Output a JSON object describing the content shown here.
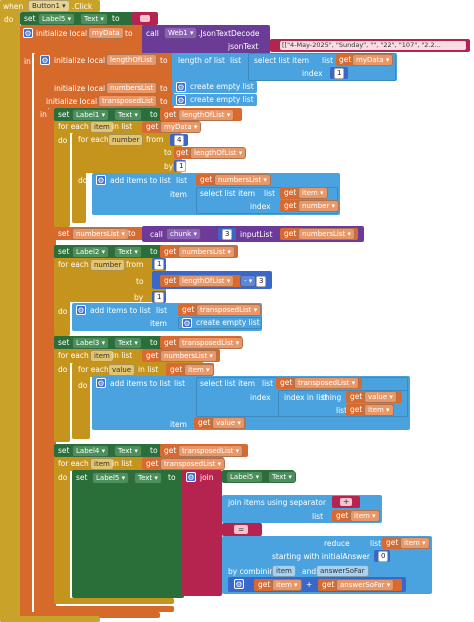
{
  "event": {
    "when": "when",
    "component": "Button1",
    "event": ".Click",
    "do": "do"
  },
  "set1": {
    "set": "set",
    "component": "Label5",
    "prop": "Text",
    "to": "to"
  },
  "init1": {
    "label": "initialize local",
    "name": "myData",
    "to": "to",
    "call": "call",
    "component": "Web1",
    "method": ".JsonTextDecode",
    "param": "jsonText",
    "value": "[[\"4-May-2025\", \"Sunday\", \"\", \"22\", \"107\", \"2.2...",
    "in": "in"
  },
  "init2": {
    "label": "initialize local",
    "name": "lengthOfList",
    "to": "to",
    "block": "length of list",
    "list": "list",
    "select": "select list item",
    "list2": "list",
    "get": "get",
    "var": "myData",
    "index": "index",
    "index_val": "1"
  },
  "init3": {
    "label": "initialize local",
    "name": "numbersList",
    "to": "to",
    "create": "create empty list"
  },
  "init4": {
    "label": "initialize local",
    "name": "transposedList",
    "to": "to",
    "create": "create empty list",
    "in": "in"
  },
  "set2": {
    "set": "set",
    "component": "Label1",
    "prop": "Text",
    "to": "to",
    "get": "get",
    "var": "lengthOfList"
  },
  "loop1": {
    "for_each": "for each",
    "item": "item",
    "in_list": "in list",
    "get": "get",
    "var": "myData",
    "do": "do"
  },
  "loop2": {
    "for_each": "for each",
    "number": "number",
    "from": "from",
    "from_val": "4",
    "to": "to",
    "get": "get",
    "var": "lengthOfList",
    "by": "by",
    "by_val": "1",
    "do": "do"
  },
  "add1": {
    "label": "add items to list",
    "list": "list",
    "get": "get",
    "var": "numbersList",
    "item": "item",
    "select": "select list item",
    "list2": "list",
    "get2": "get",
    "var2": "item",
    "index": "index",
    "get3": "get",
    "var3": "number"
  },
  "set3": {
    "set": "set",
    "var": "numbersList",
    "to": "to",
    "call": "call",
    "proc": "chunk",
    "arg": "3",
    "param": "inputList",
    "get": "get",
    "var2": "numbersList"
  },
  "set4": {
    "set": "set",
    "component": "Label2",
    "prop": "Text",
    "to": "to",
    "get": "get",
    "var": "numbersList"
  },
  "loop3": {
    "for_each": "for each",
    "number": "number",
    "from": "from",
    "from_val": "1",
    "to": "to",
    "get": "get",
    "var": "lengthOfList",
    "op": "-",
    "op_val": "3",
    "by": "by",
    "by_val": "1",
    "do": "do"
  },
  "add2": {
    "label": "add items to list",
    "list": "list",
    "get": "get",
    "var": "transposedList",
    "item": "item",
    "create": "create empty list"
  },
  "set5": {
    "set": "set",
    "component": "Label3",
    "prop": "Text",
    "to": "to",
    "get": "get",
    "var": "transposedList"
  },
  "loop4": {
    "for_each": "for each",
    "item": "item",
    "in_list": "in list",
    "get": "get",
    "var": "numbersList",
    "do": "do"
  },
  "loop5": {
    "for_each": "for each",
    "value": "value",
    "in_list": "in list",
    "get": "get",
    "var": "item",
    "do": "do"
  },
  "add3": {
    "label": "add items to list",
    "list": "list",
    "select": "select list item",
    "list2": "list",
    "get": "get",
    "var": "transposedList",
    "index": "index",
    "index_in_list": "index in list",
    "thing": "thing",
    "get2": "get",
    "var2": "value",
    "list3": "list",
    "get3": "get",
    "var3": "item",
    "item": "item",
    "get4": "get",
    "var4": "value"
  },
  "set6": {
    "set": "set",
    "component": "Label4",
    "prop": "Text",
    "to": "to",
    "get": "get",
    "var": "transposedList"
  },
  "loop6": {
    "for_each": "for each",
    "item": "item",
    "in_list": "in list",
    "get": "get",
    "var": "transposedList",
    "do": "do"
  },
  "set7": {
    "set": "set",
    "component": "Label5",
    "prop": "Text",
    "to": "to",
    "join": "join",
    "component2": "Label5",
    "prop2": "Text",
    "join2": "join items using separator",
    "sep": "+",
    "list": "list",
    "get": "get",
    "var": "item",
    "eq": "=",
    "reduce": "reduce",
    "list2": "list",
    "get2": "get",
    "var2": "item",
    "starting": "starting with initialAnswer",
    "init_val": "0",
    "combining": "by combining",
    "p1": "item",
    "and": "and",
    "p2": "answerSoFar",
    "get3": "get",
    "var3": "item",
    "plus": "+",
    "get4": "get",
    "var4": "answerSoFar"
  }
}
